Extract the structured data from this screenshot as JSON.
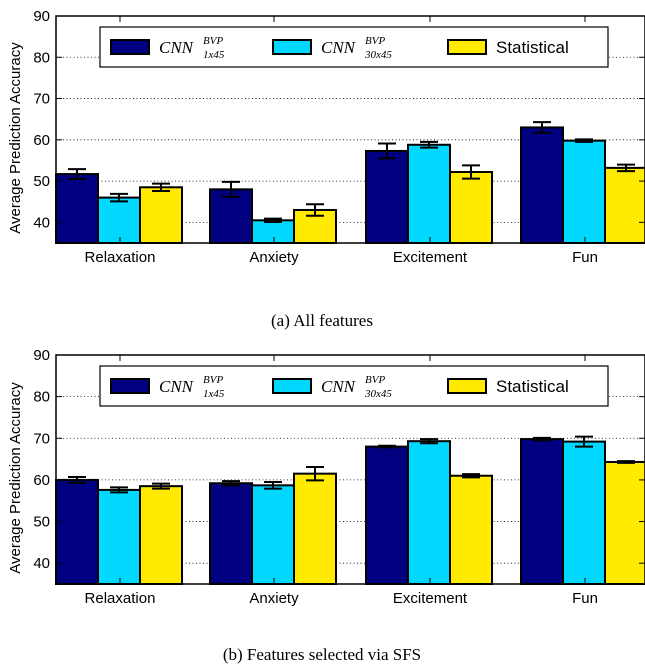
{
  "colors": {
    "cnn_1x45": "#000080",
    "cnn_30x45": "#00d8ff",
    "statistical": "#ffea00",
    "frame": "#000000",
    "grid": "#000000"
  },
  "chart_data": [
    {
      "type": "bar",
      "caption": "(a)  All features",
      "ylabel": "Average Prediction Accuracy",
      "categories": [
        "Relaxation",
        "Anxiety",
        "Excitement",
        "Fun"
      ],
      "ylim": [
        35,
        90
      ],
      "yticks": [
        "40",
        "50",
        "60",
        "70",
        "80",
        "90"
      ],
      "grid": true,
      "legend_position": "top",
      "error_bars": true,
      "series": [
        {
          "name": "CNN",
          "name_sup": "BVP",
          "name_sub": "1x45",
          "values": [
            51.7,
            48.0,
            57.3,
            63.0
          ],
          "errors": [
            1.2,
            1.8,
            1.8,
            1.3
          ]
        },
        {
          "name": "CNN",
          "name_sup": "BVP",
          "name_sub": "30x45",
          "values": [
            46.0,
            40.5,
            58.8,
            59.8
          ],
          "errors": [
            0.9,
            0.4,
            0.7,
            0.3
          ]
        },
        {
          "name": "Statistical",
          "name_sup": "",
          "name_sub": "",
          "values": [
            48.5,
            43.0,
            52.2,
            53.2
          ],
          "errors": [
            0.9,
            1.4,
            1.6,
            0.8
          ]
        }
      ]
    },
    {
      "type": "bar",
      "caption": "(b)  Features selected via SFS",
      "ylabel": "Average Prediction Accuracy",
      "categories": [
        "Relaxation",
        "Anxiety",
        "Excitement",
        "Fun"
      ],
      "ylim": [
        35,
        90
      ],
      "yticks": [
        "40",
        "50",
        "60",
        "70",
        "80",
        "90"
      ],
      "grid": true,
      "legend_position": "top",
      "error_bars": true,
      "series": [
        {
          "name": "CNN",
          "name_sup": "BVP",
          "name_sub": "1x45",
          "values": [
            60.0,
            59.2,
            68.0,
            69.8
          ],
          "errors": [
            0.7,
            0.5,
            0.2,
            0.3
          ]
        },
        {
          "name": "CNN",
          "name_sup": "BVP",
          "name_sub": "30x45",
          "values": [
            57.6,
            58.7,
            69.3,
            69.2
          ],
          "errors": [
            0.6,
            0.8,
            0.5,
            1.2
          ]
        },
        {
          "name": "Statistical",
          "name_sup": "",
          "name_sub": "",
          "values": [
            58.5,
            61.5,
            61.0,
            64.3
          ],
          "errors": [
            0.6,
            1.6,
            0.4,
            0.2
          ]
        }
      ]
    }
  ]
}
